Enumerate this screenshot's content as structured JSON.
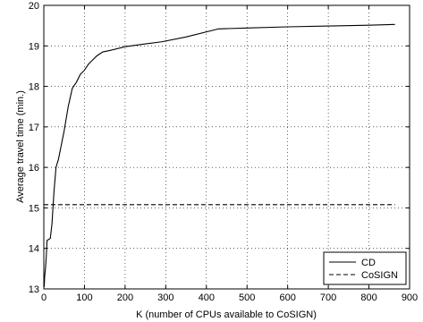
{
  "chart_data": {
    "type": "line",
    "xlabel": "K (number of CPUs available to CoSIGN)",
    "ylabel": "Average travel time (min.)",
    "xlim": [
      0,
      900
    ],
    "ylim": [
      13,
      20
    ],
    "xticks": [
      0,
      100,
      200,
      300,
      400,
      500,
      600,
      700,
      800,
      900
    ],
    "yticks": [
      13,
      14,
      15,
      16,
      17,
      18,
      19,
      20
    ],
    "grid": true,
    "legend_position": "bottom-right",
    "series": [
      {
        "name": "CD",
        "style": "solid",
        "color": "#000000",
        "x": [
          1,
          2,
          4,
          6,
          8,
          12,
          16,
          20,
          25,
          30,
          36,
          40,
          50,
          60,
          70,
          80,
          90,
          100,
          110,
          120,
          130,
          145,
          160,
          200,
          250,
          290,
          350,
          430,
          500,
          600,
          700,
          800,
          864
        ],
        "y": [
          13.05,
          13.3,
          13.5,
          13.8,
          14.2,
          14.22,
          14.25,
          14.6,
          15.4,
          16.0,
          16.2,
          16.4,
          16.9,
          17.5,
          17.95,
          18.1,
          18.3,
          18.4,
          18.55,
          18.65,
          18.75,
          18.85,
          18.88,
          18.98,
          19.05,
          19.1,
          19.22,
          19.42,
          19.44,
          19.47,
          19.49,
          19.51,
          19.53
        ]
      },
      {
        "name": "CoSIGN",
        "style": "dashed",
        "color": "#000000",
        "x": [
          0,
          864
        ],
        "y": [
          15.08,
          15.08
        ]
      }
    ]
  }
}
